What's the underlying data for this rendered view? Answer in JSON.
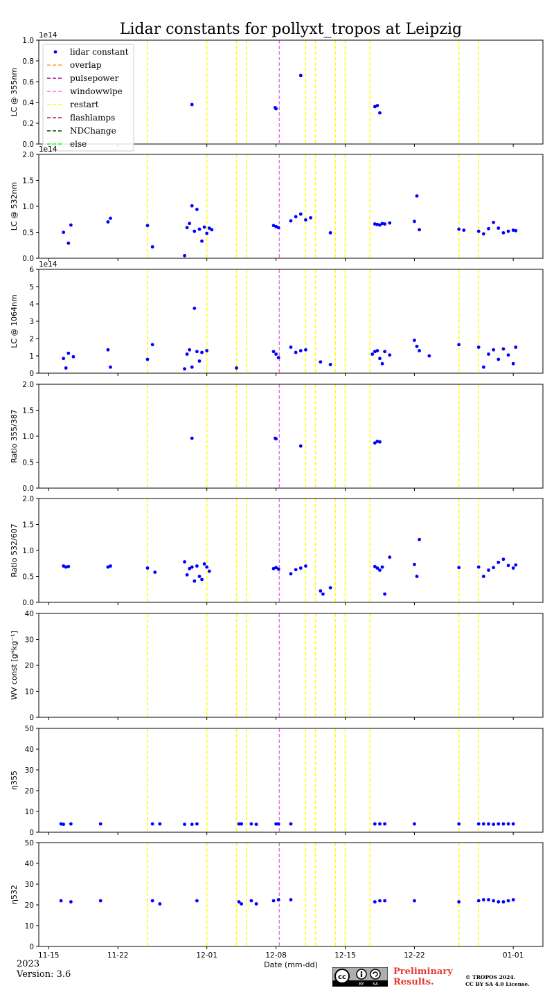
{
  "title": "Lidar constants for pollyxt_tropos at Leipzig",
  "footer": {
    "year": "2023",
    "version": "Version: 3.6",
    "preliminary_line1": "Preliminary",
    "preliminary_line2": "Results.",
    "copyright_line1": "© TROPOS 2024.",
    "copyright_line2": "CC BY SA 4.0 License.",
    "cc_badge_text": "cc BY SA"
  },
  "colors": {
    "points": "#0000ff",
    "overlap": "#ff9933",
    "pulsepower": "#a0008c",
    "windowwipe": "#f06ef0",
    "restart": "#ffff00",
    "flashlamps": "#a52a2a",
    "NDChange": "#004400",
    "else": "#00ff00",
    "prelim": "#e53935"
  },
  "chart_data": {
    "type": "scatter",
    "xlabel": "Date (mm-dd)",
    "xlim": [
      "2023-11-14",
      "2024-01-04"
    ],
    "x_ticks": [
      "2023-11-15",
      "2023-11-22",
      "2023-12-01",
      "2023-12-08",
      "2023-12-15",
      "2023-12-22",
      "2024-01-01"
    ],
    "x_tick_labels": [
      "11-15",
      "11-22",
      "12-01",
      "12-08",
      "12-15",
      "12-22",
      "01-01"
    ],
    "grid": false,
    "legend": {
      "placement": "upper-left of first panel",
      "entries": [
        "lidar constant",
        "overlap",
        "pulsepower",
        "windowwipe",
        "restart",
        "flashlamps",
        "NDChange",
        "else"
      ]
    },
    "events": {
      "restart": [
        "2023-11-25 00:00",
        "2023-12-01 00:00",
        "2023-12-04 00:00",
        "2023-12-05 00:00",
        "2023-12-11 00:00",
        "2023-12-12 00:00",
        "2023-12-14 00:00",
        "2023-12-15 00:00",
        "2023-12-17 12:00",
        "2023-12-26 12:00",
        "2023-12-28 12:00"
      ],
      "windowwipe": [
        "2023-12-08 08:00"
      ]
    },
    "panels": [
      {
        "ylabel": "LC @ 355nm",
        "ylim": [
          0,
          1.0
        ],
        "yticks": [
          0.0,
          0.2,
          0.4,
          0.6,
          0.8,
          1.0
        ],
        "ytick_labels": [
          "0.0",
          "0.2",
          "0.4",
          "0.6",
          "0.8",
          "1.0"
        ],
        "offset_label": "1e14",
        "legend": true,
        "x": [
          "2023-11-29 12:00",
          "2023-12-07 22:00",
          "2023-12-08 00:00",
          "2023-12-10 12:00",
          "2023-12-18 00:00",
          "2023-12-18 06:00",
          "2023-12-18 12:00"
        ],
        "y": [
          0.38,
          0.35,
          0.34,
          0.66,
          0.36,
          0.37,
          0.3
        ]
      },
      {
        "ylabel": "LC @ 532nm",
        "ylim": [
          0,
          2.0
        ],
        "yticks": [
          0.0,
          0.5,
          1.0,
          1.5,
          2.0
        ],
        "ytick_labels": [
          "0.0",
          "0.5",
          "1.0",
          "1.5",
          "2.0"
        ],
        "offset_label": "1e14",
        "x": [
          "2023-11-16 12:00",
          "2023-11-17 00:00",
          "2023-11-17 06:00",
          "2023-11-21 00:00",
          "2023-11-21 06:00",
          "2023-11-25 00:00",
          "2023-11-25 12:00",
          "2023-11-28 18:00",
          "2023-11-29 00:00",
          "2023-11-29 06:00",
          "2023-11-29 12:00",
          "2023-11-29 18:00",
          "2023-11-30 00:00",
          "2023-11-30 06:00",
          "2023-11-30 12:00",
          "2023-11-30 18:00",
          "2023-12-01 00:00",
          "2023-12-01 06:00",
          "2023-12-01 12:00",
          "2023-12-07 18:00",
          "2023-12-08 00:00",
          "2023-12-08 06:00",
          "2023-12-09 12:00",
          "2023-12-10 00:00",
          "2023-12-10 12:00",
          "2023-12-11 00:00",
          "2023-12-11 12:00",
          "2023-12-13 12:00",
          "2023-12-18 00:00",
          "2023-12-18 06:00",
          "2023-12-18 12:00",
          "2023-12-18 18:00",
          "2023-12-19 00:00",
          "2023-12-19 12:00",
          "2023-12-22 00:00",
          "2023-12-22 06:00",
          "2023-12-22 12:00",
          "2023-12-26 12:00",
          "2023-12-27 00:00",
          "2023-12-28 12:00",
          "2023-12-29 00:00",
          "2023-12-29 12:00",
          "2023-12-30 00:00",
          "2023-12-30 12:00",
          "2023-12-31 00:00",
          "2023-12-31 12:00",
          "2024-01-01 00:00",
          "2024-01-01 06:00"
        ],
        "y": [
          0.5,
          0.29,
          0.64,
          0.7,
          0.77,
          0.63,
          0.22,
          0.05,
          0.59,
          0.67,
          1.01,
          0.52,
          0.94,
          0.56,
          0.33,
          0.6,
          0.48,
          0.58,
          0.55,
          0.63,
          0.61,
          0.59,
          0.72,
          0.8,
          0.85,
          0.74,
          0.78,
          0.49,
          0.66,
          0.65,
          0.64,
          0.67,
          0.66,
          0.68,
          0.71,
          1.2,
          0.55,
          0.56,
          0.54,
          0.52,
          0.47,
          0.57,
          0.69,
          0.58,
          0.49,
          0.52,
          0.54,
          0.53
        ]
      },
      {
        "ylabel": "LC @ 1064nm",
        "ylim": [
          0,
          6
        ],
        "yticks": [
          0,
          1,
          2,
          3,
          4,
          5,
          6
        ],
        "ytick_labels": [
          "0",
          "1",
          "2",
          "3",
          "4",
          "5",
          "6"
        ],
        "offset_label": "1e14",
        "x": [
          "2023-11-16 12:00",
          "2023-11-16 18:00",
          "2023-11-17 00:00",
          "2023-11-17 12:00",
          "2023-11-21 00:00",
          "2023-11-21 06:00",
          "2023-11-25 00:00",
          "2023-11-25 12:00",
          "2023-11-28 18:00",
          "2023-11-29 00:00",
          "2023-11-29 06:00",
          "2023-11-29 12:00",
          "2023-11-29 18:00",
          "2023-11-30 00:00",
          "2023-11-30 06:00",
          "2023-11-30 12:00",
          "2023-12-01 00:00",
          "2023-12-04 00:00",
          "2023-12-07 18:00",
          "2023-12-08 00:00",
          "2023-12-08 06:00",
          "2023-12-09 12:00",
          "2023-12-10 00:00",
          "2023-12-10 12:00",
          "2023-12-11 00:00",
          "2023-12-12 12:00",
          "2023-12-13 12:00",
          "2023-12-17 18:00",
          "2023-12-18 00:00",
          "2023-12-18 06:00",
          "2023-12-18 12:00",
          "2023-12-18 18:00",
          "2023-12-19 00:00",
          "2023-12-19 12:00",
          "2023-12-22 00:00",
          "2023-12-22 06:00",
          "2023-12-22 12:00",
          "2023-12-23 12:00",
          "2023-12-26 12:00",
          "2023-12-28 12:00",
          "2023-12-29 00:00",
          "2023-12-29 12:00",
          "2023-12-30 00:00",
          "2023-12-30 12:00",
          "2023-12-31 00:00",
          "2023-12-31 12:00",
          "2024-01-01 00:00",
          "2024-01-01 06:00"
        ],
        "y": [
          0.85,
          0.3,
          1.15,
          0.95,
          1.35,
          0.35,
          0.8,
          1.65,
          0.25,
          1.1,
          1.35,
          0.35,
          3.75,
          1.25,
          0.7,
          1.2,
          1.3,
          0.3,
          1.25,
          1.1,
          0.9,
          1.5,
          1.2,
          1.3,
          1.35,
          0.65,
          0.5,
          1.1,
          1.25,
          1.3,
          0.85,
          0.55,
          1.25,
          1.05,
          1.9,
          1.55,
          1.3,
          1.0,
          1.65,
          1.5,
          0.35,
          1.1,
          1.35,
          0.8,
          1.4,
          1.05,
          0.55,
          1.5
        ]
      },
      {
        "ylabel": "Ratio 355/387",
        "ylim": [
          0,
          2.0
        ],
        "yticks": [
          0.0,
          0.5,
          1.0,
          1.5,
          2.0
        ],
        "ytick_labels": [
          "0.0",
          "0.5",
          "1.0",
          "1.5",
          "2.0"
        ],
        "x": [
          "2023-11-29 12:00",
          "2023-12-07 22:00",
          "2023-12-08 00:00",
          "2023-12-10 12:00",
          "2023-12-18 00:00",
          "2023-12-18 06:00",
          "2023-12-18 12:00"
        ],
        "y": [
          0.96,
          0.96,
          0.95,
          0.81,
          0.87,
          0.9,
          0.89
        ]
      },
      {
        "ylabel": "Ratio 532/607",
        "ylim": [
          0,
          2.0
        ],
        "yticks": [
          0.0,
          0.5,
          1.0,
          1.5,
          2.0
        ],
        "ytick_labels": [
          "0.0",
          "0.5",
          "1.0",
          "1.5",
          "2.0"
        ],
        "x": [
          "2023-11-16 12:00",
          "2023-11-16 18:00",
          "2023-11-17 00:00",
          "2023-11-21 00:00",
          "2023-11-21 06:00",
          "2023-11-25 00:00",
          "2023-11-25 18:00",
          "2023-11-28 18:00",
          "2023-11-29 00:00",
          "2023-11-29 06:00",
          "2023-11-29 12:00",
          "2023-11-29 18:00",
          "2023-11-30 00:00",
          "2023-11-30 06:00",
          "2023-11-30 12:00",
          "2023-11-30 18:00",
          "2023-12-01 00:00",
          "2023-12-01 06:00",
          "2023-12-07 18:00",
          "2023-12-08 00:00",
          "2023-12-08 06:00",
          "2023-12-09 12:00",
          "2023-12-10 00:00",
          "2023-12-10 12:00",
          "2023-12-11 00:00",
          "2023-12-12 12:00",
          "2023-12-12 18:00",
          "2023-12-13 12:00",
          "2023-12-18 00:00",
          "2023-12-18 06:00",
          "2023-12-18 12:00",
          "2023-12-18 18:00",
          "2023-12-19 00:00",
          "2023-12-19 12:00",
          "2023-12-22 00:00",
          "2023-12-22 06:00",
          "2023-12-22 12:00",
          "2023-12-26 12:00",
          "2023-12-28 12:00",
          "2023-12-29 00:00",
          "2023-12-29 12:00",
          "2023-12-30 00:00",
          "2023-12-30 12:00",
          "2023-12-31 00:00",
          "2023-12-31 12:00",
          "2024-01-01 00:00",
          "2024-01-01 06:00"
        ],
        "y": [
          0.7,
          0.68,
          0.69,
          0.68,
          0.7,
          0.66,
          0.58,
          0.78,
          0.53,
          0.65,
          0.68,
          0.41,
          0.7,
          0.5,
          0.44,
          0.74,
          0.68,
          0.6,
          0.65,
          0.67,
          0.64,
          0.55,
          0.63,
          0.66,
          0.7,
          0.22,
          0.16,
          0.28,
          0.69,
          0.66,
          0.62,
          0.68,
          0.16,
          0.87,
          0.73,
          0.5,
          1.21,
          0.67,
          0.68,
          0.5,
          0.62,
          0.67,
          0.77,
          0.83,
          0.71,
          0.66,
          0.72
        ]
      },
      {
        "ylabel": "WV const [g*kg⁻¹]",
        "ylim": [
          0,
          40
        ],
        "yticks": [
          0,
          10,
          20,
          30,
          40
        ],
        "ytick_labels": [
          "0",
          "10",
          "20",
          "30",
          "40"
        ],
        "x": [],
        "y": []
      },
      {
        "ylabel": "η355",
        "ylim": [
          0,
          50
        ],
        "yticks": [
          0,
          10,
          20,
          30,
          40,
          50
        ],
        "ytick_labels": [
          "0",
          "10",
          "20",
          "30",
          "40",
          "50"
        ],
        "x": [
          "2023-11-16 06:00",
          "2023-11-16 12:00",
          "2023-11-17 06:00",
          "2023-11-20 06:00",
          "2023-11-25 12:00",
          "2023-11-26 06:00",
          "2023-11-28 18:00",
          "2023-11-29 12:00",
          "2023-11-30 00:00",
          "2023-12-04 06:00",
          "2023-12-04 12:00",
          "2023-12-05 12:00",
          "2023-12-06 00:00",
          "2023-12-08 00:00",
          "2023-12-08 06:00",
          "2023-12-09 12:00",
          "2023-12-18 00:00",
          "2023-12-18 12:00",
          "2023-12-19 00:00",
          "2023-12-22 00:00",
          "2023-12-26 12:00",
          "2023-12-28 12:00",
          "2023-12-29 00:00",
          "2023-12-29 12:00",
          "2023-12-30 00:00",
          "2023-12-30 12:00",
          "2023-12-31 00:00",
          "2023-12-31 12:00",
          "2024-01-01 00:00"
        ],
        "y": [
          4,
          3.8,
          4,
          4,
          4,
          4,
          3.8,
          3.8,
          4,
          4,
          4,
          4,
          3.8,
          4,
          4,
          4,
          4,
          4,
          4,
          4,
          4,
          4,
          4,
          4,
          3.8,
          4,
          4,
          4,
          4
        ]
      },
      {
        "ylabel": "η532",
        "ylim": [
          0,
          50
        ],
        "yticks": [
          0,
          10,
          20,
          30,
          40,
          50
        ],
        "ytick_labels": [
          "0",
          "10",
          "20",
          "30",
          "40",
          "50"
        ],
        "x": [
          "2023-11-16 06:00",
          "2023-11-17 06:00",
          "2023-11-20 06:00",
          "2023-11-25 12:00",
          "2023-11-26 06:00",
          "2023-11-30 00:00",
          "2023-12-04 06:00",
          "2023-12-04 12:00",
          "2023-12-05 12:00",
          "2023-12-06 00:00",
          "2023-12-07 18:00",
          "2023-12-08 06:00",
          "2023-12-09 12:00",
          "2023-12-18 00:00",
          "2023-12-18 12:00",
          "2023-12-19 00:00",
          "2023-12-22 00:00",
          "2023-12-26 12:00",
          "2023-12-28 12:00",
          "2023-12-29 00:00",
          "2023-12-29 12:00",
          "2023-12-30 00:00",
          "2023-12-30 12:00",
          "2023-12-31 00:00",
          "2023-12-31 12:00",
          "2024-01-01 00:00"
        ],
        "y": [
          22,
          21.5,
          22,
          22,
          20.5,
          22,
          21.5,
          20.5,
          22,
          20.5,
          22,
          22.5,
          22.5,
          21.5,
          22,
          22,
          22,
          21.5,
          22,
          22.5,
          22.5,
          22,
          21.5,
          21.5,
          22,
          22.5
        ]
      }
    ]
  }
}
